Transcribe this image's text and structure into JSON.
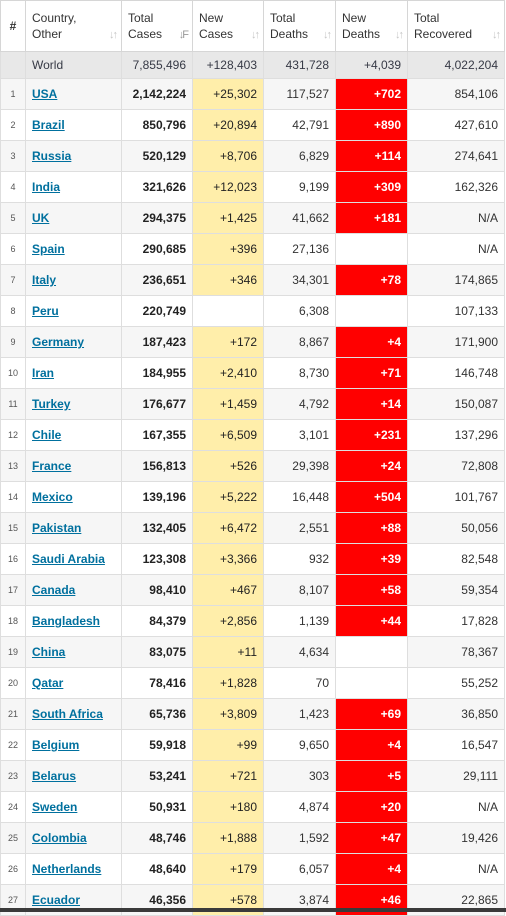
{
  "header": {
    "index": "#",
    "country": "Country, Other",
    "total_cases": "Total Cases",
    "new_cases": "New Cases",
    "total_deaths": "Total Deaths",
    "new_deaths": "New Deaths",
    "total_recovered": "Total Recovered"
  },
  "world": {
    "country": "World",
    "total_cases": "7,855,496",
    "new_cases": "+128,403",
    "total_deaths": "431,728",
    "new_deaths": "+4,039",
    "total_recovered": "4,022,204"
  },
  "rows": [
    {
      "idx": "1",
      "country": "USA",
      "total_cases": "2,142,224",
      "new_cases": "+25,302",
      "total_deaths": "117,527",
      "new_deaths": "+702",
      "total_recovered": "854,106"
    },
    {
      "idx": "2",
      "country": "Brazil",
      "total_cases": "850,796",
      "new_cases": "+20,894",
      "total_deaths": "42,791",
      "new_deaths": "+890",
      "total_recovered": "427,610"
    },
    {
      "idx": "3",
      "country": "Russia",
      "total_cases": "520,129",
      "new_cases": "+8,706",
      "total_deaths": "6,829",
      "new_deaths": "+114",
      "total_recovered": "274,641"
    },
    {
      "idx": "4",
      "country": "India",
      "total_cases": "321,626",
      "new_cases": "+12,023",
      "total_deaths": "9,199",
      "new_deaths": "+309",
      "total_recovered": "162,326"
    },
    {
      "idx": "5",
      "country": "UK",
      "total_cases": "294,375",
      "new_cases": "+1,425",
      "total_deaths": "41,662",
      "new_deaths": "+181",
      "total_recovered": "N/A"
    },
    {
      "idx": "6",
      "country": "Spain",
      "total_cases": "290,685",
      "new_cases": "+396",
      "total_deaths": "27,136",
      "new_deaths": "",
      "total_recovered": "N/A"
    },
    {
      "idx": "7",
      "country": "Italy",
      "total_cases": "236,651",
      "new_cases": "+346",
      "total_deaths": "34,301",
      "new_deaths": "+78",
      "total_recovered": "174,865"
    },
    {
      "idx": "8",
      "country": "Peru",
      "total_cases": "220,749",
      "new_cases": "",
      "total_deaths": "6,308",
      "new_deaths": "",
      "total_recovered": "107,133"
    },
    {
      "idx": "9",
      "country": "Germany",
      "total_cases": "187,423",
      "new_cases": "+172",
      "total_deaths": "8,867",
      "new_deaths": "+4",
      "total_recovered": "171,900"
    },
    {
      "idx": "10",
      "country": "Iran",
      "total_cases": "184,955",
      "new_cases": "+2,410",
      "total_deaths": "8,730",
      "new_deaths": "+71",
      "total_recovered": "146,748"
    },
    {
      "idx": "11",
      "country": "Turkey",
      "total_cases": "176,677",
      "new_cases": "+1,459",
      "total_deaths": "4,792",
      "new_deaths": "+14",
      "total_recovered": "150,087"
    },
    {
      "idx": "12",
      "country": "Chile",
      "total_cases": "167,355",
      "new_cases": "+6,509",
      "total_deaths": "3,101",
      "new_deaths": "+231",
      "total_recovered": "137,296"
    },
    {
      "idx": "13",
      "country": "France",
      "total_cases": "156,813",
      "new_cases": "+526",
      "total_deaths": "29,398",
      "new_deaths": "+24",
      "total_recovered": "72,808"
    },
    {
      "idx": "14",
      "country": "Mexico",
      "total_cases": "139,196",
      "new_cases": "+5,222",
      "total_deaths": "16,448",
      "new_deaths": "+504",
      "total_recovered": "101,767"
    },
    {
      "idx": "15",
      "country": "Pakistan",
      "total_cases": "132,405",
      "new_cases": "+6,472",
      "total_deaths": "2,551",
      "new_deaths": "+88",
      "total_recovered": "50,056"
    },
    {
      "idx": "16",
      "country": "Saudi Arabia",
      "total_cases": "123,308",
      "new_cases": "+3,366",
      "total_deaths": "932",
      "new_deaths": "+39",
      "total_recovered": "82,548"
    },
    {
      "idx": "17",
      "country": "Canada",
      "total_cases": "98,410",
      "new_cases": "+467",
      "total_deaths": "8,107",
      "new_deaths": "+58",
      "total_recovered": "59,354"
    },
    {
      "idx": "18",
      "country": "Bangladesh",
      "total_cases": "84,379",
      "new_cases": "+2,856",
      "total_deaths": "1,139",
      "new_deaths": "+44",
      "total_recovered": "17,828"
    },
    {
      "idx": "19",
      "country": "China",
      "total_cases": "83,075",
      "new_cases": "+11",
      "total_deaths": "4,634",
      "new_deaths": "",
      "total_recovered": "78,367"
    },
    {
      "idx": "20",
      "country": "Qatar",
      "total_cases": "78,416",
      "new_cases": "+1,828",
      "total_deaths": "70",
      "new_deaths": "",
      "total_recovered": "55,252"
    },
    {
      "idx": "21",
      "country": "South Africa",
      "total_cases": "65,736",
      "new_cases": "+3,809",
      "total_deaths": "1,423",
      "new_deaths": "+69",
      "total_recovered": "36,850"
    },
    {
      "idx": "22",
      "country": "Belgium",
      "total_cases": "59,918",
      "new_cases": "+99",
      "total_deaths": "9,650",
      "new_deaths": "+4",
      "total_recovered": "16,547"
    },
    {
      "idx": "23",
      "country": "Belarus",
      "total_cases": "53,241",
      "new_cases": "+721",
      "total_deaths": "303",
      "new_deaths": "+5",
      "total_recovered": "29,111"
    },
    {
      "idx": "24",
      "country": "Sweden",
      "total_cases": "50,931",
      "new_cases": "+180",
      "total_deaths": "4,874",
      "new_deaths": "+20",
      "total_recovered": "N/A"
    },
    {
      "idx": "25",
      "country": "Colombia",
      "total_cases": "48,746",
      "new_cases": "+1,888",
      "total_deaths": "1,592",
      "new_deaths": "+47",
      "total_recovered": "19,426"
    },
    {
      "idx": "26",
      "country": "Netherlands",
      "total_cases": "48,640",
      "new_cases": "+179",
      "total_deaths": "6,057",
      "new_deaths": "+4",
      "total_recovered": "N/A"
    },
    {
      "idx": "27",
      "country": "Ecuador",
      "total_cases": "46,356",
      "new_cases": "+578",
      "total_deaths": "3,874",
      "new_deaths": "+46",
      "total_recovered": "22,865"
    }
  ],
  "colors": {
    "new_cases_bg": "#ffeeaa",
    "new_deaths_bg": "#ff0000",
    "link": "#00709e",
    "world_bg": "#e8e8e8"
  },
  "icons": {
    "sort": "sort-arrows-icon",
    "sort_active": "sort-desc-icon"
  }
}
